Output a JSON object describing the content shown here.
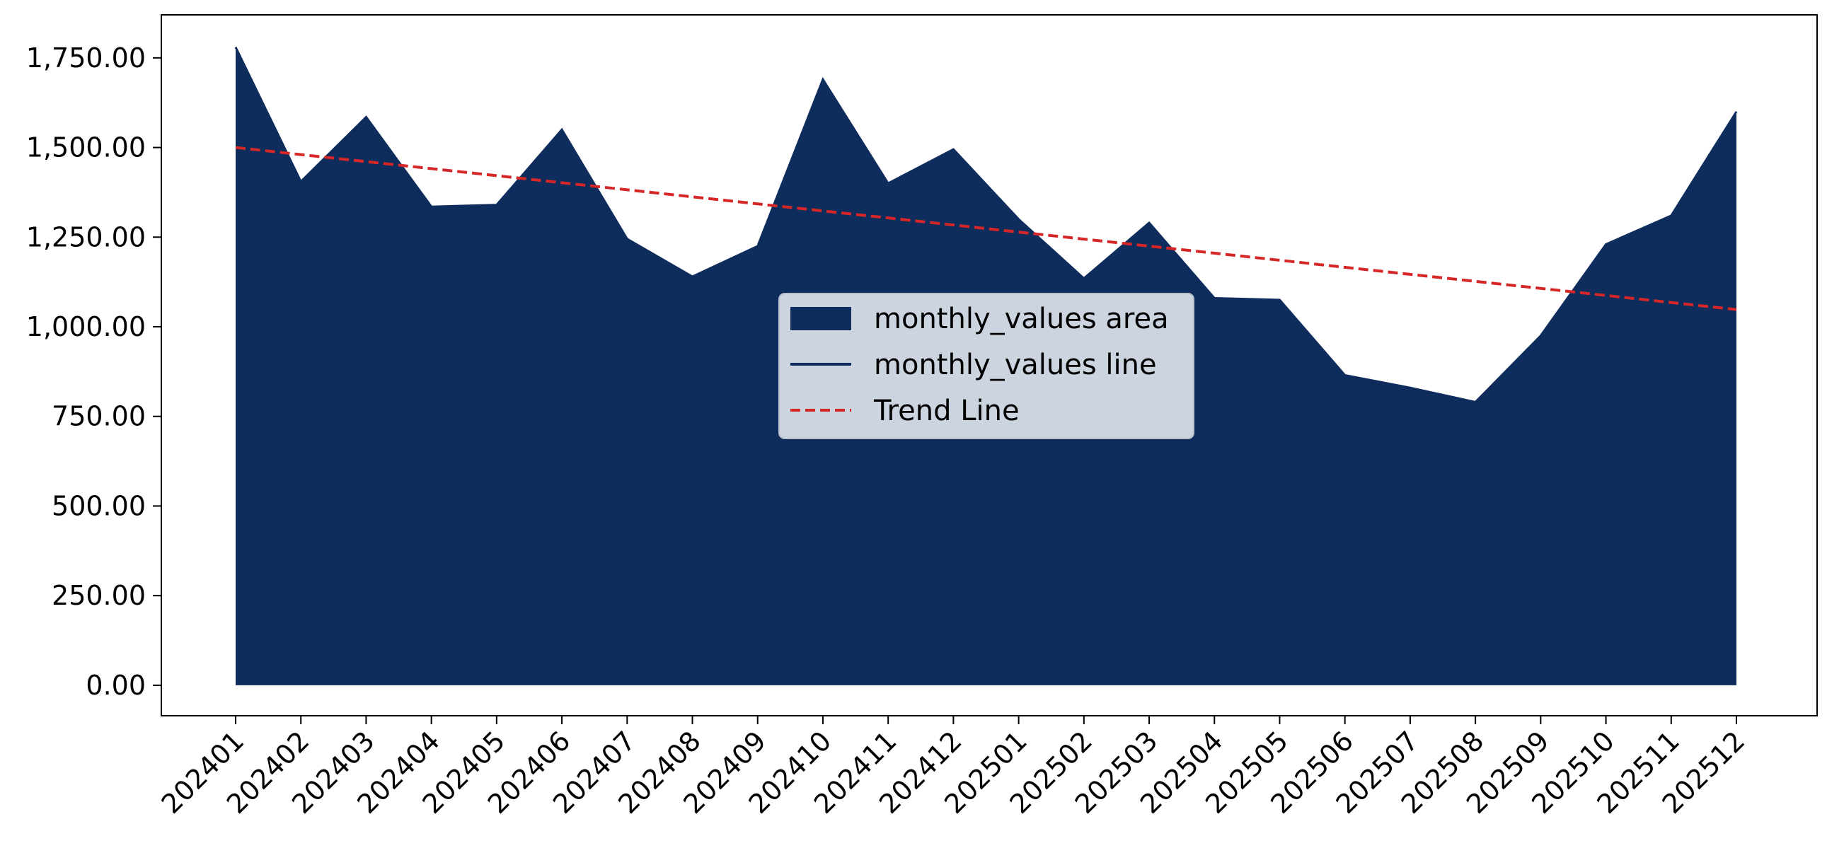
{
  "chart_data": {
    "type": "area",
    "title": "",
    "xlabel": "",
    "ylabel": "",
    "categories": [
      "202401",
      "202402",
      "202403",
      "202404",
      "202405",
      "202406",
      "202407",
      "202408",
      "202409",
      "202410",
      "202411",
      "202412",
      "202501",
      "202502",
      "202503",
      "202504",
      "202505",
      "202506",
      "202507",
      "202508",
      "202509",
      "202510",
      "202511",
      "202512"
    ],
    "series": [
      {
        "name": "monthly_values area",
        "kind": "area",
        "color": "#0e2c5c",
        "values": [
          1780,
          1405,
          1585,
          1335,
          1340,
          1550,
          1245,
          1140,
          1225,
          1690,
          1400,
          1495,
          1300,
          1135,
          1290,
          1080,
          1075,
          865,
          830,
          790,
          975,
          1230,
          1310,
          1600
        ]
      },
      {
        "name": "monthly_values line",
        "kind": "line",
        "color": "#0e2c5c",
        "values": [
          1780,
          1405,
          1585,
          1335,
          1340,
          1550,
          1245,
          1140,
          1225,
          1690,
          1400,
          1495,
          1300,
          1135,
          1290,
          1080,
          1075,
          865,
          830,
          790,
          975,
          1230,
          1310,
          1600
        ]
      },
      {
        "name": "Trend Line",
        "kind": "trend",
        "color": "#d62728",
        "start": 1500,
        "end": 1048
      }
    ],
    "ylim": [
      -85,
      1870
    ],
    "yticks": [
      0,
      250,
      500,
      750,
      1000,
      1250,
      1500,
      1750
    ],
    "ytick_labels": [
      "0.00",
      "250.00",
      "500.00",
      "750.00",
      "1,000.00",
      "1,250.00",
      "1,500.00",
      "1,750.00"
    ],
    "grid": false,
    "legend_position": "center"
  }
}
